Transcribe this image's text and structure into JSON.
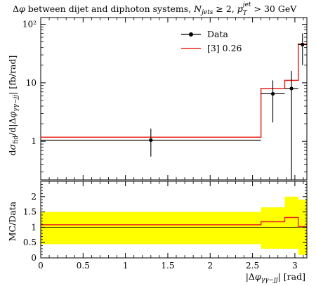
{
  "chart_data": {
    "type": "line",
    "title": "Δφ between dijet and diphoton systems, N_jets ≥ 2, p_T^jet > 30 GeV",
    "xlabel": "|Δφ_γγ−jj| [rad]",
    "ylabel": "dσ_fid/d|Δφ_γγ−jj| [fb/rad]",
    "ratio_ylabel": "MC/Data",
    "xlim": [
      0,
      3.1416
    ],
    "ylim": [
      0.22,
      130
    ],
    "yscale": "log",
    "ratio_ylim": [
      0,
      2.5
    ],
    "x_ticks": [
      "0",
      "0.5",
      "1",
      "1.5",
      "2",
      "2.5",
      "3"
    ],
    "x_tick_values": [
      0,
      0.5,
      1,
      1.5,
      2,
      2.5,
      3
    ],
    "y_ticks": [
      "1",
      "10",
      "10²"
    ],
    "ratio_y_ticks": [
      "0",
      "0.5",
      "1",
      "1.5",
      "2"
    ],
    "legend_position": "top-right",
    "bin_edges": [
      0,
      2.6,
      2.88,
      3.04,
      3.1416
    ],
    "series": [
      {
        "name": "Data",
        "color": "#000000",
        "style": "points",
        "x": [
          1.3,
          2.74,
          2.96,
          3.09
        ],
        "y": [
          1.05,
          6.5,
          8,
          45
        ],
        "yerr_low": [
          0.5,
          4.4,
          7.9,
          25
        ],
        "yerr_high": [
          0.6,
          4.5,
          8,
          25
        ]
      },
      {
        "name": "[3] 0.26",
        "color": "#e8281e",
        "style": "step",
        "values": [
          1.18,
          8,
          11,
          46
        ]
      }
    ],
    "ratio": {
      "mc_over_data": [
        1.08,
        1.18,
        1.32,
        1.02
      ],
      "band_low": [
        0.45,
        0.3,
        0.3,
        0.1
      ],
      "band_high": [
        1.5,
        1.65,
        2.0,
        1.9
      ],
      "band_color": "#ffff00",
      "mc_color": "#e8281e"
    }
  }
}
